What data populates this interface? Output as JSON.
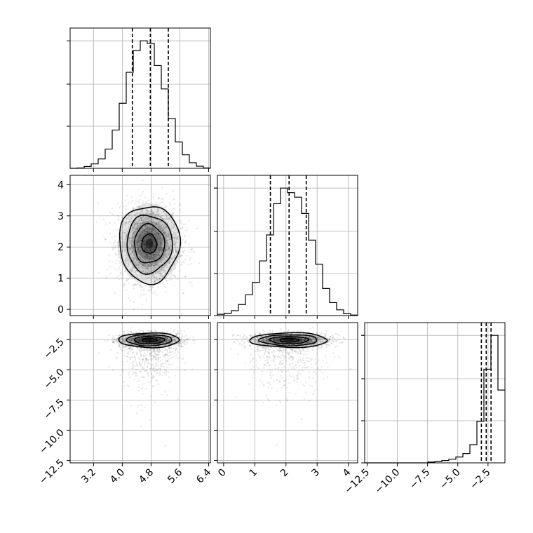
{
  "chart_data": {
    "type": "corner",
    "grid": true,
    "parameters": [
      {
        "id": "p0",
        "range": [
          2.55,
          6.45
        ],
        "ticks": [
          3.2,
          4.0,
          4.8,
          5.6,
          6.4
        ],
        "tick_labels": [
          "3.2",
          "4.0",
          "4.8",
          "5.6",
          "6.4"
        ]
      },
      {
        "id": "p1",
        "range": [
          -0.2,
          4.3
        ],
        "ticks": [
          0,
          1,
          2,
          3,
          4
        ],
        "tick_labels": [
          "0",
          "1",
          "2",
          "3",
          "4"
        ]
      },
      {
        "id": "p2",
        "range": [
          -12.7,
          -1.1
        ],
        "ticks": [
          -12.5,
          -10.0,
          -7.5,
          -5.0,
          -2.5
        ],
        "tick_labels": [
          "−12.5",
          "−10.0",
          "−7.5",
          "−5.0",
          "−2.5"
        ]
      }
    ],
    "histograms": [
      {
        "param": "p0",
        "quantiles": [
          4.28,
          4.78,
          5.28
        ],
        "bins": [
          2.55,
          2.745,
          2.94,
          3.135,
          3.33,
          3.525,
          3.72,
          3.915,
          4.11,
          4.305,
          4.5,
          4.695,
          4.89,
          5.085,
          5.28,
          5.475,
          5.67,
          5.865,
          6.06,
          6.255,
          6.45
        ],
        "counts": [
          0,
          3,
          14,
          34,
          72,
          148,
          294,
          500,
          738,
          905,
          980,
          960,
          790,
          610,
          382,
          203,
          104,
          43,
          16,
          3
        ]
      },
      {
        "param": "p1",
        "quantiles": [
          1.5,
          2.1,
          2.65
        ],
        "bins": [
          -0.2,
          0.025,
          0.25,
          0.475,
          0.7,
          0.925,
          1.15,
          1.375,
          1.6,
          1.825,
          2.05,
          2.275,
          2.5,
          2.725,
          2.95,
          3.175,
          3.4,
          3.625,
          3.85,
          4.075,
          4.3
        ],
        "counts": [
          10,
          18,
          38,
          85,
          160,
          255,
          420,
          620,
          860,
          980,
          945,
          910,
          785,
          580,
          395,
          208,
          100,
          44,
          14,
          4
        ]
      },
      {
        "param": "p2",
        "quantiles": [
          -3.05,
          -2.65,
          -2.25
        ],
        "bins": [
          -12.7,
          -12.12,
          -11.54,
          -10.96,
          -10.38,
          -9.8,
          -9.22,
          -8.64,
          -8.06,
          -7.48,
          -6.9,
          -6.32,
          -5.74,
          -5.16,
          -4.58,
          -4.0,
          -3.42,
          -2.84,
          -2.26,
          -1.68,
          -1.1
        ],
        "counts": [
          0,
          0,
          0,
          0,
          0,
          0,
          0,
          0,
          0,
          6,
          10,
          18,
          28,
          45,
          72,
          140,
          320,
          720,
          980,
          560
        ]
      }
    ],
    "joint": [
      {
        "x": "p0",
        "y": "p1",
        "center": [
          4.75,
          2.1
        ],
        "sd": [
          0.42,
          0.62
        ],
        "n": 2400,
        "outliers": []
      },
      {
        "x": "p0",
        "y": "p2",
        "center": [
          4.75,
          -2.55
        ],
        "sd": [
          0.42,
          0.55
        ],
        "n": 2000,
        "tail": true,
        "outliers": [
          [
            4.4,
            -8.6
          ],
          [
            5.2,
            -11.3
          ]
        ]
      },
      {
        "x": "p1",
        "y": "p2",
        "center": [
          2.1,
          -2.55
        ],
        "sd": [
          0.62,
          0.55
        ],
        "n": 2000,
        "tail": true,
        "outliers": [
          [
            2.9,
            -10.0
          ],
          [
            1.7,
            -11.2
          ],
          [
            2.5,
            -9.1
          ]
        ]
      }
    ]
  }
}
